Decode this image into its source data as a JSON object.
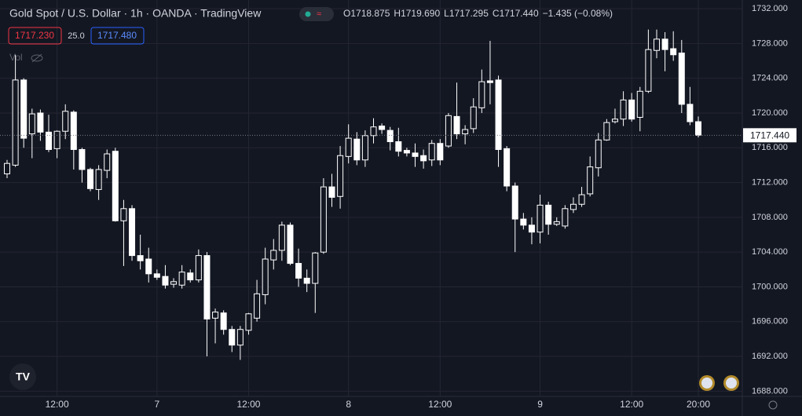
{
  "chart_data": {
    "type": "candlestick",
    "title": "Gold Spot / U.S. Dollar · 1h · OANDA · TradingView",
    "ohlc": [
      {
        "label": "O",
        "value": "1718.875"
      },
      {
        "label": "H",
        "value": "1719.690"
      },
      {
        "label": "L",
        "value": "1717.295"
      },
      {
        "label": "C",
        "value": "1717.440"
      }
    ],
    "change": "−1.435 (−0.08%)",
    "bid": "1717.230",
    "spread": "25.0",
    "ask": "1717.480",
    "volume_label": "Vol",
    "last_price": {
      "value": 1717.44,
      "label": "1717.440"
    },
    "color": "#ffffff",
    "grid": true,
    "categories": [
      null,
      null,
      null,
      null,
      null,
      null,
      "12:00",
      null,
      null,
      null,
      null,
      null,
      null,
      null,
      null,
      null,
      null,
      null,
      "7",
      null,
      null,
      null,
      null,
      null,
      null,
      null,
      null,
      null,
      null,
      "12:00",
      null,
      null,
      null,
      null,
      null,
      null,
      null,
      null,
      null,
      null,
      null,
      "8",
      null,
      null,
      null,
      null,
      null,
      null,
      null,
      null,
      null,
      null,
      "12:00",
      null,
      null,
      null,
      null,
      null,
      null,
      null,
      null,
      null,
      null,
      null,
      "9",
      null,
      null,
      null,
      null,
      null,
      null,
      null,
      null,
      null,
      null,
      "12:00",
      null,
      null,
      null,
      null,
      null,
      null,
      null,
      "20:00"
    ],
    "open": [
      1713.0,
      1714.0,
      1723.8,
      1717.6,
      1720.0,
      1717.8,
      1715.9,
      1717.9,
      1720.1,
      1715.8,
      1713.5,
      1711.2,
      1713.4,
      1715.6,
      1707.6,
      1709.0,
      1703.6,
      1703.2,
      1701.5,
      1701.2,
      1700.3,
      1700.2,
      1701.6,
      1700.8,
      1703.6,
      1696.4,
      1697.0,
      1695.1,
      1693.3,
      1695.0,
      1696.4,
      1699.1,
      1703.1,
      1704.2,
      1707.1,
      1702.7,
      1701.0,
      1700.4,
      1704.0,
      1711.5,
      1710.4,
      1715.0,
      1717.0,
      1714.6,
      1717.4,
      1718.5,
      1718.0,
      1716.7,
      1715.7,
      1715.4,
      1715.1,
      1714.6,
      1716.5,
      1716.2,
      1719.6,
      1717.6,
      1718.2,
      1720.6,
      1723.7,
      1723.8,
      1715.9,
      1711.6,
      1707.8,
      1707.1,
      1706.3,
      1709.4,
      1707.2,
      1707.0,
      1708.9,
      1709.5,
      1710.7,
      1713.7,
      1716.9,
      1719.0,
      1719.3,
      1721.5,
      1719.5,
      1722.5,
      1727.2,
      1728.5,
      1727.4,
      1726.9,
      1721.0,
      1719.0
    ],
    "high": [
      1714.6,
      1726.7,
      1724.0,
      1720.5,
      1720.4,
      1719.8,
      1718.0,
      1721.0,
      1720.3,
      1716.0,
      1713.7,
      1714.0,
      1715.8,
      1716.0,
      1710.0,
      1709.4,
      1706.0,
      1704.5,
      1702.0,
      1702.5,
      1701.0,
      1702.5,
      1702.0,
      1704.3,
      1704.0,
      1697.5,
      1697.3,
      1695.5,
      1695.5,
      1697.0,
      1700.8,
      1704.5,
      1705.5,
      1707.5,
      1707.4,
      1704.4,
      1702.0,
      1704.0,
      1712.5,
      1713.0,
      1716.2,
      1718.7,
      1717.8,
      1718.0,
      1719.4,
      1718.8,
      1718.4,
      1718.3,
      1716.0,
      1716.5,
      1715.8,
      1716.9,
      1717.0,
      1720.0,
      1723.5,
      1718.6,
      1721.7,
      1725.0,
      1728.3,
      1724.3,
      1716.2,
      1712.0,
      1708.5,
      1708.0,
      1710.6,
      1709.8,
      1708.0,
      1709.4,
      1710.3,
      1711.5,
      1715.0,
      1717.7,
      1719.3,
      1720.5,
      1722.5,
      1722.3,
      1723.0,
      1729.6,
      1729.6,
      1729.3,
      1729.4,
      1728.4,
      1723.0,
      1719.6
    ],
    "low": [
      1712.5,
      1713.8,
      1716.0,
      1714.8,
      1716.8,
      1715.5,
      1714.8,
      1717.0,
      1713.5,
      1712.0,
      1711.0,
      1710.0,
      1712.5,
      1707.5,
      1702.4,
      1703.0,
      1702.0,
      1700.5,
      1700.8,
      1699.8,
      1699.9,
      1699.8,
      1700.5,
      1700.5,
      1692.0,
      1693.5,
      1694.5,
      1692.5,
      1691.6,
      1694.5,
      1696.0,
      1698.0,
      1702.0,
      1703.0,
      1702.5,
      1700.0,
      1699.4,
      1697.0,
      1703.8,
      1709.2,
      1709.0,
      1714.2,
      1714.0,
      1713.8,
      1716.5,
      1717.6,
      1715.7,
      1715.0,
      1715.0,
      1713.8,
      1713.6,
      1713.9,
      1714.0,
      1716.0,
      1717.0,
      1716.4,
      1717.7,
      1720.0,
      1721.0,
      1713.8,
      1711.0,
      1704.0,
      1706.6,
      1704.9,
      1705.0,
      1706.0,
      1707.0,
      1706.7,
      1708.5,
      1709.2,
      1710.4,
      1712.7,
      1716.8,
      1718.8,
      1718.5,
      1719.0,
      1717.9,
      1722.3,
      1726.3,
      1724.8,
      1726.0,
      1720.0,
      1718.6,
      1717.2
    ],
    "close": [
      1714.2,
      1723.8,
      1717.1,
      1719.9,
      1717.8,
      1715.8,
      1717.9,
      1720.2,
      1715.8,
      1713.5,
      1711.3,
      1713.5,
      1715.3,
      1707.6,
      1709.0,
      1703.6,
      1703.0,
      1701.5,
      1701.1,
      1700.2,
      1700.6,
      1701.7,
      1700.8,
      1703.6,
      1696.3,
      1697.1,
      1695.1,
      1693.3,
      1695.1,
      1696.9,
      1699.2,
      1703.2,
      1704.2,
      1707.1,
      1702.7,
      1701.0,
      1700.4,
      1703.9,
      1711.5,
      1710.3,
      1715.1,
      1717.1,
      1714.6,
      1717.4,
      1718.4,
      1718.1,
      1716.7,
      1715.6,
      1715.4,
      1715.0,
      1714.5,
      1716.5,
      1714.6,
      1719.7,
      1717.6,
      1718.1,
      1720.7,
      1723.6,
      1723.5,
      1715.8,
      1711.6,
      1707.8,
      1707.1,
      1706.3,
      1709.4,
      1707.2,
      1707.5,
      1709.0,
      1709.5,
      1710.6,
      1713.8,
      1716.9,
      1718.9,
      1719.3,
      1721.5,
      1719.3,
      1722.5,
      1727.3,
      1728.5,
      1727.3,
      1726.7,
      1721.0,
      1719.0,
      1717.44
    ],
    "ylim": [
      1687.4,
      1733.0
    ],
    "yticks": [
      {
        "value": 1688,
        "label": "1688.000"
      },
      {
        "value": 1692,
        "label": "1692.000"
      },
      {
        "value": 1696,
        "label": "1696.000"
      },
      {
        "value": 1700,
        "label": "1700.000"
      },
      {
        "value": 1704,
        "label": "1704.000"
      },
      {
        "value": 1708,
        "label": "1708.000"
      },
      {
        "value": 1712,
        "label": "1712.000"
      },
      {
        "value": 1716,
        "label": "1716.000"
      },
      {
        "value": 1720,
        "label": "1720.000"
      },
      {
        "value": 1724,
        "label": "1724.000"
      },
      {
        "value": 1728,
        "label": "1728.000"
      },
      {
        "value": 1732,
        "label": "1732.000"
      }
    ]
  }
}
